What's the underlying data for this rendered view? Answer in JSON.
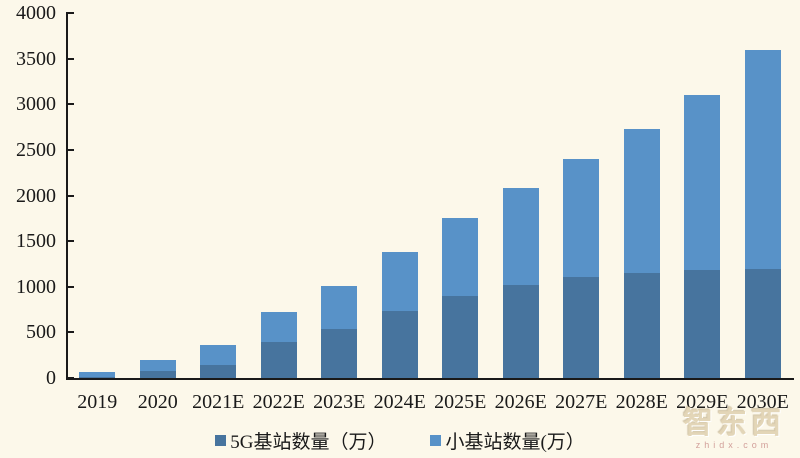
{
  "background_color": "#FCF8EA",
  "axis_color": "#1A1A1A",
  "text_color": "#1A1A1A",
  "watermark": {
    "brand": "智东西",
    "domain": "zhidx.com"
  },
  "chart_data": {
    "type": "bar",
    "stacked": true,
    "title": "",
    "xlabel": "",
    "ylabel": "",
    "categories": [
      "2019",
      "2020",
      "2021E",
      "2022E",
      "2023E",
      "2024E",
      "2025E",
      "2026E",
      "2027E",
      "2028E",
      "2029E",
      "2030E"
    ],
    "series": [
      {
        "name": "5G基站数量（万）",
        "color": "#47749E",
        "values": [
          13,
          72,
          140,
          390,
          540,
          730,
          900,
          1020,
          1110,
          1150,
          1180,
          1200
        ]
      },
      {
        "name": "小基站数量(万）",
        "color": "#5892C8",
        "values": [
          57,
          128,
          220,
          330,
          470,
          650,
          850,
          1060,
          1290,
          1580,
          1920,
          2400
        ]
      }
    ],
    "stacked_totals": [
      70,
      200,
      360,
      720,
      1010,
      1380,
      1750,
      2080,
      2400,
      2730,
      3100,
      3600
    ],
    "ylim": [
      0,
      4000
    ],
    "yticks": [
      0,
      500,
      1000,
      1500,
      2000,
      2500,
      3000,
      3500,
      4000
    ],
    "grid": false,
    "legend_position": "bottom"
  }
}
